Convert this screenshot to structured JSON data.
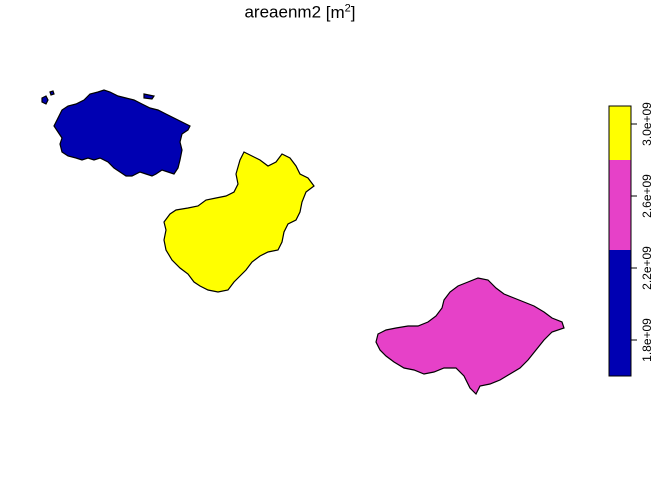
{
  "map": {
    "title_main": "areaenm2",
    "title_unit_base": "m",
    "title_unit_exp": "2",
    "regions": [
      {
        "id": "region-blue",
        "class_index": 0
      },
      {
        "id": "region-yellow",
        "class_index": 2
      },
      {
        "id": "region-magenta",
        "class_index": 1
      }
    ]
  },
  "legend": {
    "classes": [
      {
        "range": [
          1600000000.0,
          2300000000.0
        ],
        "color": "#0000b2"
      },
      {
        "range": [
          2300000000.0,
          2800000000.0
        ],
        "color": "#e641c8"
      },
      {
        "range": [
          2800000000.0,
          3100000000.0
        ],
        "color": "#ffff00"
      }
    ],
    "scale_min": 1600000000.0,
    "scale_max": 3100000000.0,
    "ticks": [
      {
        "value": 1800000000.0,
        "label": "1.8e+09"
      },
      {
        "value": 2200000000.0,
        "label": "2.2e+09"
      },
      {
        "value": 2600000000.0,
        "label": "2.6e+09"
      },
      {
        "value": 3000000000.0,
        "label": "3.0e+09"
      }
    ]
  }
}
